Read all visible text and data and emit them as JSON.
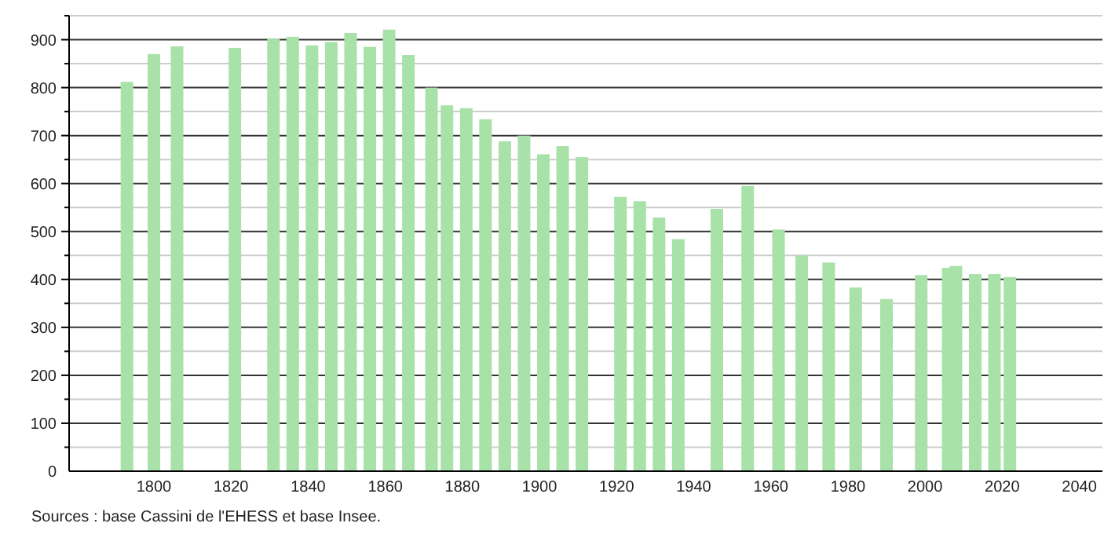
{
  "chart_data": {
    "type": "bar",
    "x": [
      1793,
      1800,
      1806,
      1821,
      1831,
      1836,
      1841,
      1846,
      1851,
      1856,
      1861,
      1866,
      1872,
      1876,
      1881,
      1886,
      1891,
      1896,
      1901,
      1906,
      1911,
      1921,
      1926,
      1931,
      1936,
      1946,
      1954,
      1962,
      1968,
      1975,
      1982,
      1990,
      1999,
      2006,
      2008,
      2013,
      2018,
      2022
    ],
    "values": [
      812,
      870,
      886,
      883,
      902,
      906,
      888,
      895,
      914,
      885,
      921,
      868,
      800,
      763,
      757,
      734,
      688,
      700,
      661,
      678,
      655,
      572,
      563,
      529,
      484,
      547,
      595,
      504,
      450,
      435,
      383,
      359,
      409,
      424,
      428,
      411,
      411,
      405
    ],
    "color": "#a8e2a8",
    "xlim": [
      1778,
      2046
    ],
    "xticks": [
      1800,
      1820,
      1840,
      1860,
      1880,
      1900,
      1920,
      1940,
      1960,
      1980,
      2000,
      2020,
      2040
    ],
    "ylim": [
      0,
      950
    ],
    "yticks": [
      0,
      {
        "value": 50,
        "label": null
      },
      100,
      {
        "value": 150,
        "label": null
      },
      200,
      {
        "value": 250,
        "label": null
      },
      300,
      {
        "value": 350,
        "label": null
      },
      400,
      {
        "value": 450,
        "label": null
      },
      500,
      {
        "value": 550,
        "label": null
      },
      600,
      {
        "value": 650,
        "label": null
      },
      700,
      {
        "value": 750,
        "label": null
      },
      800,
      {
        "value": 850,
        "label": null
      },
      900,
      {
        "value": 950,
        "label": null
      }
    ],
    "grid": "y",
    "annotations": [
      "Sources : base Cassini de l'EHESS et base Insee."
    ]
  }
}
